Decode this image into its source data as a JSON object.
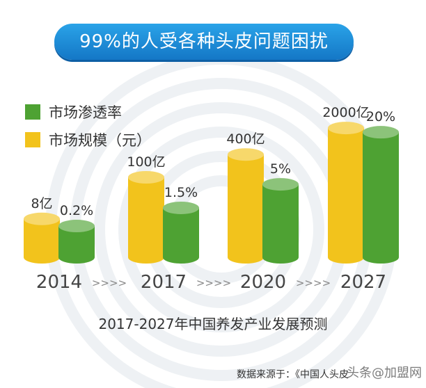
{
  "colors": {
    "market_size": "#f2c31c",
    "penetration": "#4ea233"
  },
  "title": "99%的人受各种头皮问题困扰",
  "legend": [
    "市场渗透率",
    "市场规模（元）"
  ],
  "chart_data": {
    "type": "bar",
    "categories": [
      "2014",
      "2017",
      "2020",
      "2027"
    ],
    "series": [
      {
        "name": "市场规模（元）",
        "labels": [
          "8亿",
          "100亿",
          "400亿",
          "2000亿"
        ],
        "values": [
          8,
          100,
          400,
          2000
        ]
      },
      {
        "name": "市场渗透率",
        "labels": [
          "0.2%",
          "1.5%",
          "5%",
          "20%"
        ],
        "values": [
          0.2,
          1.5,
          5,
          20
        ]
      }
    ],
    "separator": ">>>>"
  },
  "subtitle": "2017-2027年中国养发产业发展预测",
  "source": "数据来源于：《中国人头皮",
  "watermark": "头条@加盟网"
}
